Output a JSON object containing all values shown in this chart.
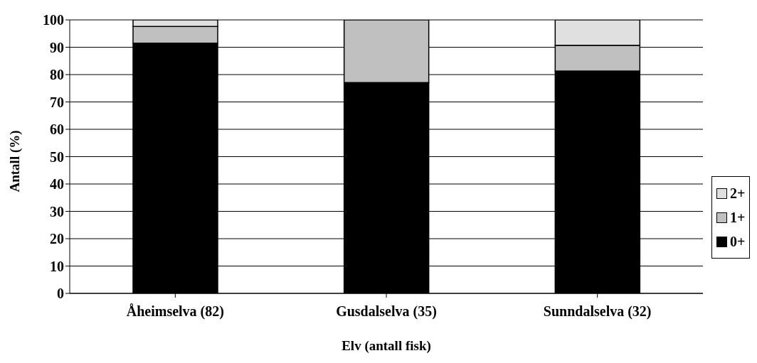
{
  "chart_data": {
    "type": "bar",
    "stacked": true,
    "xlabel": "Elv (antall fisk)",
    "ylabel": "Antall (%)",
    "categories": [
      "Åheimselva (82)",
      "Gusdalselva (35)",
      "Sunndalselva (32)"
    ],
    "series": [
      {
        "name": "0+",
        "color": "#000000",
        "values": [
          91.5,
          77.1,
          81.3
        ]
      },
      {
        "name": "1+",
        "color": "#c0c0c0",
        "values": [
          6.1,
          22.9,
          9.4
        ]
      },
      {
        "name": "2+",
        "color": "#e0e0e0",
        "values": [
          2.4,
          null,
          9.4
        ]
      }
    ],
    "ylim": [
      0,
      100
    ],
    "yticks": [
      0,
      10,
      20,
      30,
      40,
      50,
      60,
      70,
      80,
      90,
      100
    ],
    "grid": "y",
    "legend": "right"
  }
}
